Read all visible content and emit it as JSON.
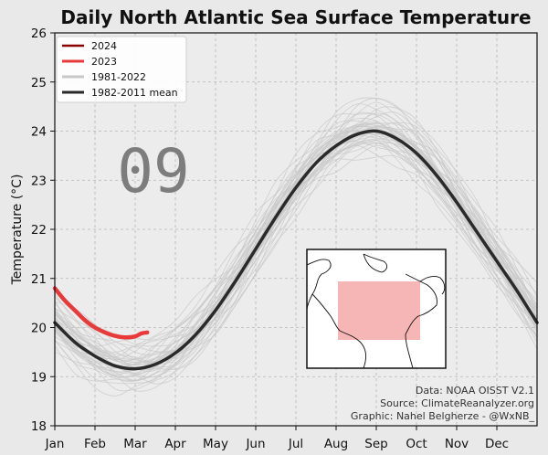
{
  "chart_data": {
    "type": "line",
    "title": "Daily North Atlantic Sea Surface Temperature",
    "xlabel": "",
    "ylabel": "Temperature (°C)",
    "ylim": [
      18,
      26
    ],
    "yticks": [
      18,
      19,
      20,
      21,
      22,
      23,
      24,
      25,
      26
    ],
    "xlim": [
      0,
      12
    ],
    "month_labels": [
      "Jan",
      "Feb",
      "Mar",
      "Apr",
      "May",
      "Jun",
      "Jul",
      "Aug",
      "Sep",
      "Oct",
      "Nov",
      "Dec"
    ],
    "grid": true,
    "legend": {
      "position": "top-left",
      "entries": [
        {
          "label": "2024",
          "color": "#8b0000"
        },
        {
          "label": "2023",
          "color": "#e83a3a"
        },
        {
          "label": "1981-2022",
          "color": "#c8c8c8"
        },
        {
          "label": "1982-2011 mean",
          "color": "#2a2a2a"
        }
      ]
    },
    "series": [
      {
        "name": "1982-2011 mean",
        "color": "#2a2a2a",
        "x": [
          0,
          0.5,
          1,
          1.5,
          2,
          2.5,
          3,
          3.5,
          4,
          4.5,
          5,
          5.5,
          6,
          6.5,
          7,
          7.5,
          8,
          8.5,
          9,
          9.5,
          10,
          10.5,
          11,
          11.5,
          12
        ],
        "y": [
          20.1,
          19.7,
          19.42,
          19.22,
          19.16,
          19.25,
          19.48,
          19.85,
          20.35,
          20.95,
          21.6,
          22.25,
          22.85,
          23.35,
          23.7,
          23.93,
          24.0,
          23.85,
          23.55,
          23.1,
          22.55,
          21.95,
          21.35,
          20.75,
          20.1
        ]
      },
      {
        "name": "2023",
        "color": "#e83a3a",
        "x": [
          0,
          0.25,
          0.5,
          0.75,
          1,
          1.25,
          1.5,
          1.75,
          2,
          2.15,
          2.3
        ],
        "y": [
          20.8,
          20.55,
          20.35,
          20.15,
          20.0,
          19.9,
          19.83,
          19.8,
          19.82,
          19.88,
          19.9
        ]
      },
      {
        "name": "2024",
        "color": "#8b0000",
        "x": [],
        "y": []
      }
    ],
    "background_years": {
      "label": "1981-2022",
      "color": "#c8c8c8",
      "count": 42,
      "spread_low_c": 0.6,
      "spread_high_c": 0.75
    },
    "annotations": {
      "frame_label": "09",
      "credits": [
        "Data: NOAA OISST V2.1",
        "Source: ClimateReanalyzer.org",
        "Graphic: Nahel Belgherze - @WxNB_"
      ]
    },
    "inset_map": {
      "description": "North Atlantic region map with highlighted area",
      "highlight_color": "#f7b6b6"
    }
  }
}
